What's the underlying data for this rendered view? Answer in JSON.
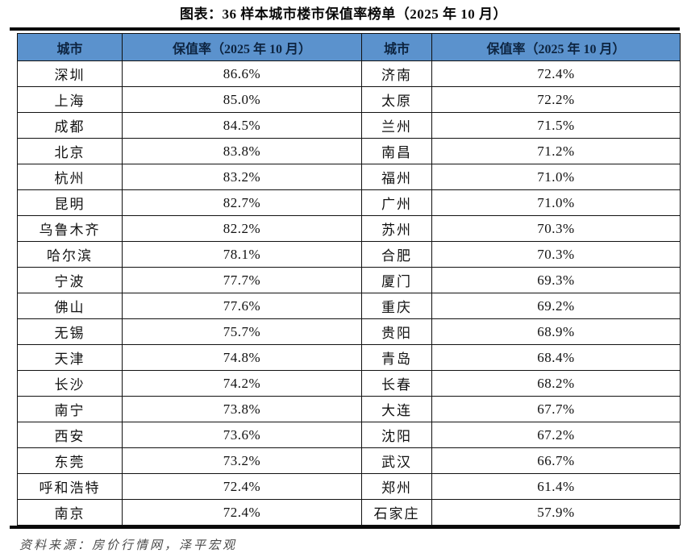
{
  "title": "图表：36 样本城市楼市保值率榜单（2025 年 10 月）",
  "source_note": "资料来源：房价行情网，泽平宏观",
  "colors": {
    "header_bg": "#5B92CD",
    "header_text": "#0D2440",
    "border": "#111111",
    "body_text": "#111111",
    "source_text": "#4a4a4a",
    "thick_rule": "#0a0a0a"
  },
  "chart_data": {
    "type": "table",
    "title": "图表：36 样本城市楼市保值率榜单（2025 年 10 月）",
    "columns": [
      "城市",
      "保值率（2025 年 10 月）",
      "城市",
      "保值率（2025 年 10 月）"
    ],
    "unit": "%",
    "rows": [
      [
        "深圳",
        "86.6%",
        "济南",
        "72.4%"
      ],
      [
        "上海",
        "85.0%",
        "太原",
        "72.2%"
      ],
      [
        "成都",
        "84.5%",
        "兰州",
        "71.5%"
      ],
      [
        "北京",
        "83.8%",
        "南昌",
        "71.2%"
      ],
      [
        "杭州",
        "83.2%",
        "福州",
        "71.0%"
      ],
      [
        "昆明",
        "82.7%",
        "广州",
        "71.0%"
      ],
      [
        "乌鲁木齐",
        "82.2%",
        "苏州",
        "70.3%"
      ],
      [
        "哈尔滨",
        "78.1%",
        "合肥",
        "70.3%"
      ],
      [
        "宁波",
        "77.7%",
        "厦门",
        "69.3%"
      ],
      [
        "佛山",
        "77.6%",
        "重庆",
        "69.2%"
      ],
      [
        "无锡",
        "75.7%",
        "贵阳",
        "68.9%"
      ],
      [
        "天津",
        "74.8%",
        "青岛",
        "68.4%"
      ],
      [
        "长沙",
        "74.2%",
        "长春",
        "68.2%"
      ],
      [
        "南宁",
        "73.8%",
        "大连",
        "67.7%"
      ],
      [
        "西安",
        "73.6%",
        "沈阳",
        "67.2%"
      ],
      [
        "东莞",
        "73.2%",
        "武汉",
        "66.7%"
      ],
      [
        "呼和浩特",
        "72.4%",
        "郑州",
        "61.4%"
      ],
      [
        "南京",
        "72.4%",
        "石家庄",
        "57.9%"
      ]
    ]
  }
}
